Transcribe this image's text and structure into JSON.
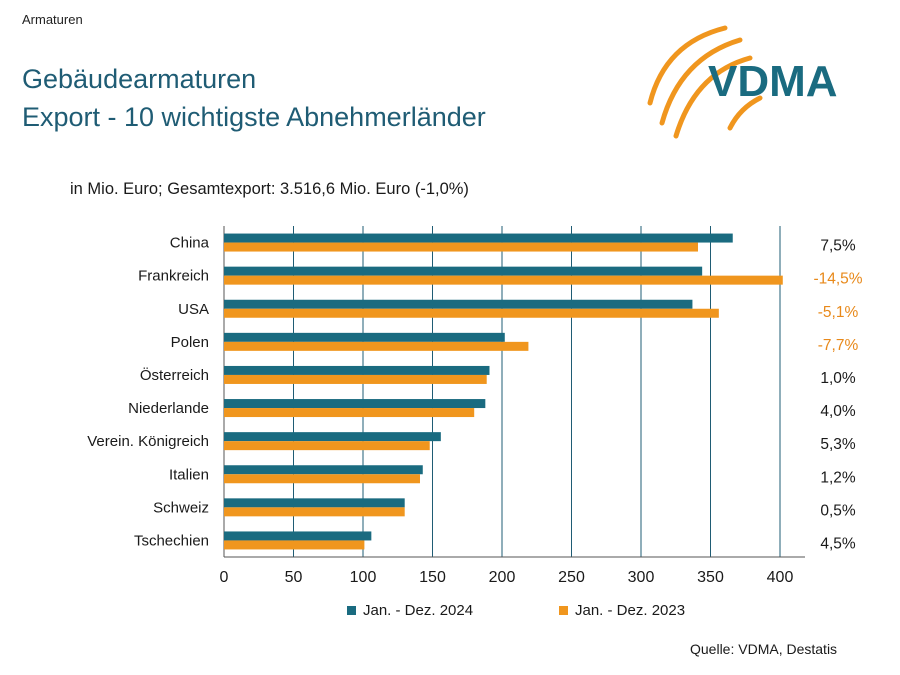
{
  "header": {
    "section": "Armaturen",
    "title_line1": "Gebäudearmaturen",
    "title_line2": "Export - 10 wichtigste Abnehmerländer",
    "logo_text": "VDMA"
  },
  "subtitle": "in Mio. Euro; Gesamtexport: 3.516,6 Mio. Euro (-1,0%)",
  "source": "Quelle: VDMA, Destatis",
  "colors": {
    "series_2024": "#1a6b80",
    "series_2023": "#f0961e",
    "negative_change": "#e8891a",
    "positive_change": "#1a1a1a",
    "grid": "#1f5c74"
  },
  "chart_data": {
    "type": "bar",
    "orientation": "horizontal",
    "categories": [
      "China",
      "Frankreich",
      "USA",
      "Polen",
      "Österreich",
      "Niederlande",
      "Verein. Königreich",
      "Italien",
      "Schweiz",
      "Tschechien"
    ],
    "series": [
      {
        "name": "Jan. - Dez. 2024",
        "values": [
          366,
          344,
          337,
          202,
          191,
          188,
          156,
          143,
          130,
          106
        ]
      },
      {
        "name": "Jan. - Dez. 2023",
        "values": [
          341,
          402,
          356,
          219,
          189,
          180,
          148,
          141,
          130,
          101
        ]
      }
    ],
    "change_labels": [
      "7,5%",
      "-14,5%",
      "-5,1%",
      "-7,7%",
      "1,0%",
      "4,0%",
      "5,3%",
      "1,2%",
      "0,5%",
      "4,5%"
    ],
    "xlim": [
      0,
      400
    ],
    "xticks": [
      "0",
      "50",
      "100",
      "150",
      "200",
      "250",
      "300",
      "350",
      "400"
    ],
    "grid": "vertical",
    "legend_position": "bottom"
  }
}
